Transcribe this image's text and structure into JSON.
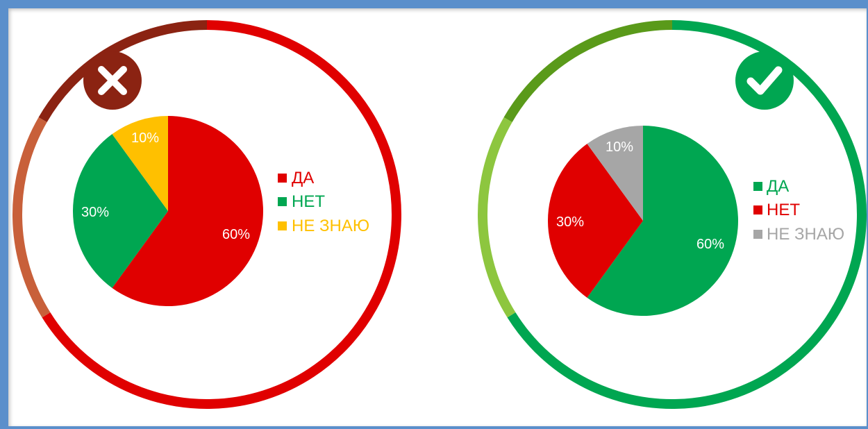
{
  "chart_data": [
    {
      "type": "pie",
      "verdict_icon": "cross-icon",
      "categories": [
        "ДА",
        "НЕТ",
        "НЕ ЗНАЮ"
      ],
      "values": [
        60,
        30,
        10
      ],
      "labels": [
        "60%",
        "30%",
        "10%"
      ],
      "colors": [
        "#e00000",
        "#00a651",
        "#ffc000"
      ],
      "legend": {
        "position": "right",
        "labels": [
          "ДА",
          "НЕТ",
          "НЕ ЗНАЮ"
        ]
      },
      "ring_colors": {
        "main": "#e00000",
        "dark": "#8b2312",
        "light": "#c8603a"
      },
      "badge_color": "#8b2312"
    },
    {
      "type": "pie",
      "verdict_icon": "check-icon",
      "categories": [
        "ДА",
        "НЕТ",
        "НЕ ЗНАЮ"
      ],
      "values": [
        60,
        30,
        10
      ],
      "labels": [
        "60%",
        "30%",
        "10%"
      ],
      "colors": [
        "#00a651",
        "#e00000",
        "#a6a6a6"
      ],
      "legend": {
        "position": "right",
        "labels": [
          "ДА",
          "НЕТ",
          "НЕ ЗНАЮ"
        ]
      },
      "ring_colors": {
        "main": "#00a651",
        "dark": "#5a9a1a",
        "light": "#8dc63f"
      },
      "badge_color": "#00a651"
    }
  ]
}
